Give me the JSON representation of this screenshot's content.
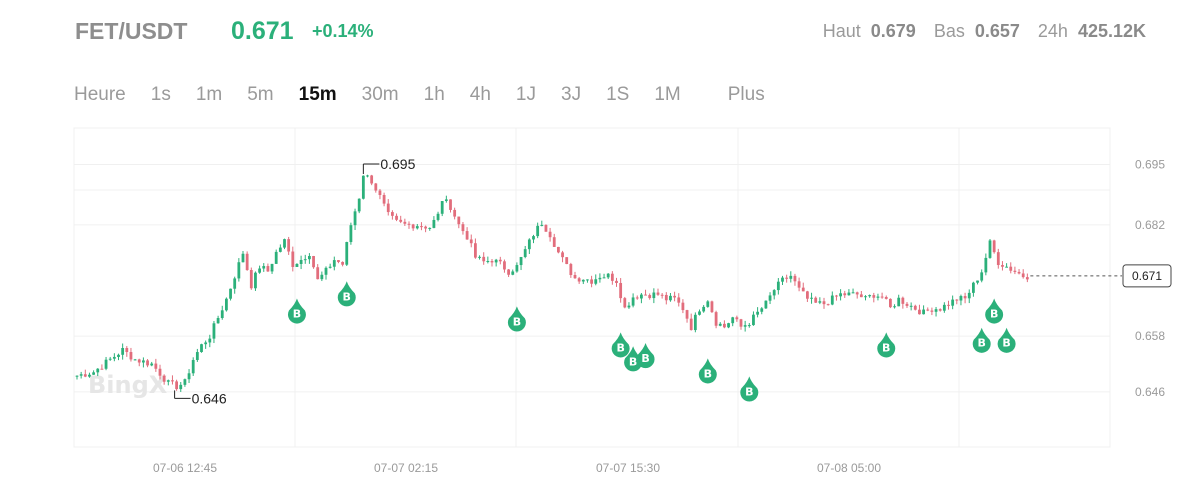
{
  "header": {
    "pair": "FET/USDT",
    "price": "0.671",
    "change": "+0.14%",
    "high_label": "Haut",
    "high_value": "0.679",
    "low_label": "Bas",
    "low_value": "0.657",
    "volume_label": "24h",
    "volume_value": "425.12K"
  },
  "tabs": [
    {
      "label": "Heure",
      "active": false
    },
    {
      "label": "1s",
      "active": false
    },
    {
      "label": "1m",
      "active": false
    },
    {
      "label": "5m",
      "active": false
    },
    {
      "label": "15m",
      "active": true
    },
    {
      "label": "30m",
      "active": false
    },
    {
      "label": "1h",
      "active": false
    },
    {
      "label": "4h",
      "active": false
    },
    {
      "label": "1J",
      "active": false
    },
    {
      "label": "3J",
      "active": false
    },
    {
      "label": "1S",
      "active": false
    },
    {
      "label": "1M",
      "active": false
    }
  ],
  "more_label": "Plus",
  "watermark": "BingX",
  "colors": {
    "up": "#2bb07a",
    "down": "#e26d7c",
    "grid": "#f0f0f0",
    "muted": "#9a9a9a"
  },
  "chart_data": {
    "type": "candlestick",
    "interval": "15m",
    "y_ticks": [
      0.695,
      0.682,
      0.658,
      0.646
    ],
    "ylim": [
      0.639,
      0.701
    ],
    "x_ticks": [
      "07-06 12:45",
      "07-07 02:15",
      "07-07 15:30",
      "07-08 05:00"
    ],
    "x_tick_index": [
      34,
      88,
      141,
      195
    ],
    "current_price": "0.671",
    "high_annotation": {
      "label": "0.695",
      "value": 0.6951,
      "index": 69
    },
    "low_annotation": {
      "label": "0.646",
      "value": 0.6461,
      "index": 24
    },
    "buy_marker_label": "B",
    "buy_markers": [
      {
        "index": 53,
        "value": 0.6685
      },
      {
        "index": 65,
        "value": 0.6722
      },
      {
        "index": 106,
        "value": 0.6668
      },
      {
        "index": 131,
        "value": 0.6612
      },
      {
        "index": 134,
        "value": 0.6582
      },
      {
        "index": 137,
        "value": 0.6589
      },
      {
        "index": 152,
        "value": 0.6556
      },
      {
        "index": 162,
        "value": 0.6517
      },
      {
        "index": 195,
        "value": 0.6612
      },
      {
        "index": 218,
        "value": 0.6622
      },
      {
        "index": 221,
        "value": 0.6685
      },
      {
        "index": 224,
        "value": 0.6622
      }
    ],
    "keypoints": [
      [
        0,
        0.6495
      ],
      [
        4,
        0.6503
      ],
      [
        8,
        0.653
      ],
      [
        11,
        0.655
      ],
      [
        14,
        0.653
      ],
      [
        18,
        0.652
      ],
      [
        20,
        0.65
      ],
      [
        22,
        0.6478
      ],
      [
        24,
        0.6472
      ],
      [
        26,
        0.648
      ],
      [
        28,
        0.653
      ],
      [
        30,
        0.656
      ],
      [
        32,
        0.658
      ],
      [
        34,
        0.662
      ],
      [
        36,
        0.666
      ],
      [
        38,
        0.671
      ],
      [
        40,
        0.676
      ],
      [
        42,
        0.669
      ],
      [
        44,
        0.673
      ],
      [
        46,
        0.672
      ],
      [
        48,
        0.676
      ],
      [
        50,
        0.6785
      ],
      [
        52,
        0.6735
      ],
      [
        54,
        0.6745
      ],
      [
        56,
        0.676
      ],
      [
        58,
        0.67
      ],
      [
        60,
        0.672
      ],
      [
        62,
        0.6745
      ],
      [
        64,
        0.6735
      ],
      [
        66,
        0.682
      ],
      [
        68,
        0.688
      ],
      [
        69,
        0.693
      ],
      [
        71,
        0.6915
      ],
      [
        73,
        0.688
      ],
      [
        75,
        0.684
      ],
      [
        77,
        0.6825
      ],
      [
        79,
        0.682
      ],
      [
        82,
        0.682
      ],
      [
        85,
        0.6815
      ],
      [
        87,
        0.684
      ],
      [
        88,
        0.6875
      ],
      [
        90,
        0.686
      ],
      [
        92,
        0.682
      ],
      [
        94,
        0.6795
      ],
      [
        96,
        0.675
      ],
      [
        98,
        0.674
      ],
      [
        100,
        0.6745
      ],
      [
        102,
        0.6735
      ],
      [
        104,
        0.672
      ],
      [
        106,
        0.673
      ],
      [
        108,
        0.6765
      ],
      [
        110,
        0.68
      ],
      [
        112,
        0.6825
      ],
      [
        114,
        0.68
      ],
      [
        116,
        0.676
      ],
      [
        118,
        0.673
      ],
      [
        120,
        0.6705
      ],
      [
        122,
        0.6705
      ],
      [
        124,
        0.67
      ],
      [
        126,
        0.671
      ],
      [
        128,
        0.671
      ],
      [
        130,
        0.67
      ],
      [
        132,
        0.664
      ],
      [
        134,
        0.6665
      ],
      [
        136,
        0.667
      ],
      [
        138,
        0.667
      ],
      [
        140,
        0.667
      ],
      [
        142,
        0.666
      ],
      [
        144,
        0.666
      ],
      [
        146,
        0.664
      ],
      [
        148,
        0.66
      ],
      [
        150,
        0.664
      ],
      [
        152,
        0.666
      ],
      [
        154,
        0.661
      ],
      [
        156,
        0.66
      ],
      [
        158,
        0.662
      ],
      [
        160,
        0.66
      ],
      [
        162,
        0.661
      ],
      [
        164,
        0.663
      ],
      [
        166,
        0.665
      ],
      [
        168,
        0.668
      ],
      [
        170,
        0.67
      ],
      [
        172,
        0.671
      ],
      [
        174,
        0.668
      ],
      [
        176,
        0.666
      ],
      [
        178,
        0.665
      ],
      [
        180,
        0.665
      ],
      [
        182,
        0.666
      ],
      [
        184,
        0.667
      ],
      [
        186,
        0.667
      ],
      [
        188,
        0.667
      ],
      [
        190,
        0.666
      ],
      [
        192,
        0.667
      ],
      [
        194,
        0.6665
      ],
      [
        196,
        0.664
      ],
      [
        198,
        0.666
      ],
      [
        200,
        0.665
      ],
      [
        202,
        0.664
      ],
      [
        204,
        0.663
      ],
      [
        206,
        0.664
      ],
      [
        208,
        0.664
      ],
      [
        210,
        0.665
      ],
      [
        212,
        0.666
      ],
      [
        214,
        0.666
      ],
      [
        216,
        0.669
      ],
      [
        218,
        0.672
      ],
      [
        220,
        0.678
      ],
      [
        222,
        0.674
      ],
      [
        224,
        0.673
      ],
      [
        226,
        0.672
      ],
      [
        228,
        0.671
      ],
      [
        229,
        0.671
      ]
    ]
  }
}
